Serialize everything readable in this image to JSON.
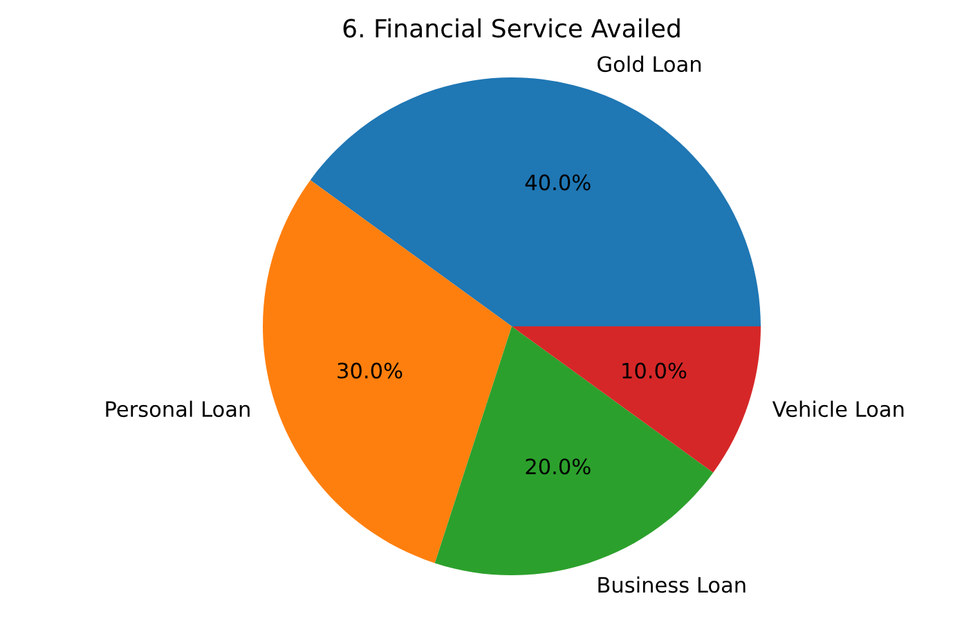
{
  "chart_data": {
    "type": "pie",
    "title": "6. Financial Service Availed",
    "categories": [
      "Gold Loan",
      "Personal Loan",
      "Business Loan",
      "Vehicle Loan"
    ],
    "values": [
      40,
      30,
      20,
      10
    ],
    "value_labels": [
      "40.0%",
      "30.0%",
      "20.0%",
      "10.0%"
    ],
    "colors": [
      "#1f77b4",
      "#ff7f0e",
      "#2ca02c",
      "#d62728"
    ]
  }
}
